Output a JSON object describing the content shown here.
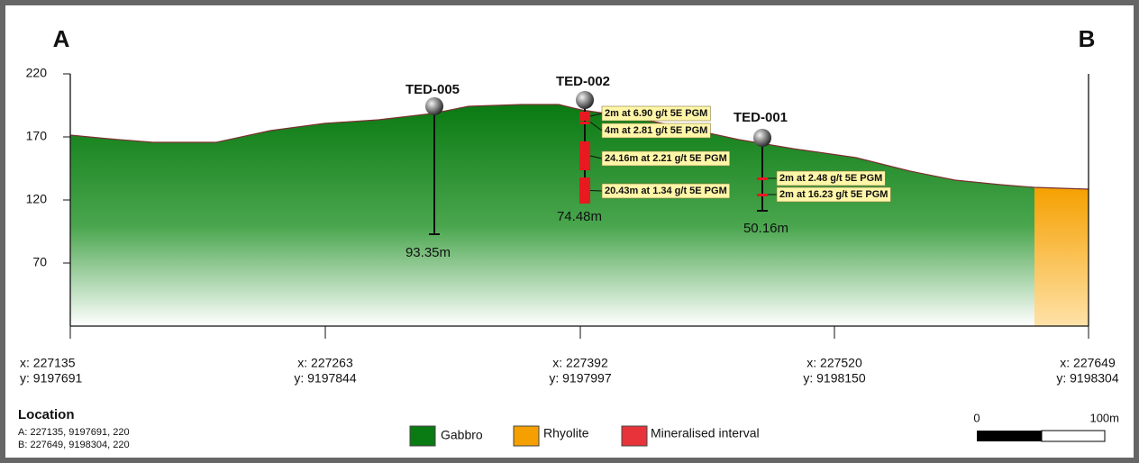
{
  "section": {
    "ends": {
      "a": "A",
      "b": "B"
    },
    "ylim": [
      20,
      220
    ],
    "yticks": [
      220,
      170,
      120,
      70
    ],
    "x_ticks": [
      {
        "x": "x: 227135",
        "y": "y: 9197691"
      },
      {
        "x": "x: 227263",
        "y": "y: 9197844"
      },
      {
        "x": "x: 227392",
        "y": "y: 9197997"
      },
      {
        "x": "x: 227520",
        "y": "y: 9198150"
      },
      {
        "x": "x: 227649",
        "y": "y: 9198304"
      }
    ],
    "drillholes": [
      {
        "name": "TED-005",
        "depth": "93.35m",
        "intervals": []
      },
      {
        "name": "TED-002",
        "depth": "74.48m",
        "intervals": [
          "2m at 6.90 g/t 5E PGM",
          "4m at 2.81 g/t 5E PGM",
          "24.16m at 2.21 g/t 5E PGM",
          "20.43m at 1.34 g/t 5E PGM"
        ]
      },
      {
        "name": "TED-001",
        "depth": "50.16m",
        "intervals": [
          "2m at 2.48 g/t 5E PGM",
          "2m at 16.23 g/t 5E PGM"
        ]
      }
    ],
    "location": {
      "title": "Location",
      "a": "A: 227135, 9197691, 220",
      "b": "B: 227649, 9198304, 220"
    },
    "legend": [
      "Gabbro",
      "Rhyolite",
      "Mineralised interval"
    ],
    "scale_bar": {
      "start": "0",
      "end": "100m"
    }
  }
}
